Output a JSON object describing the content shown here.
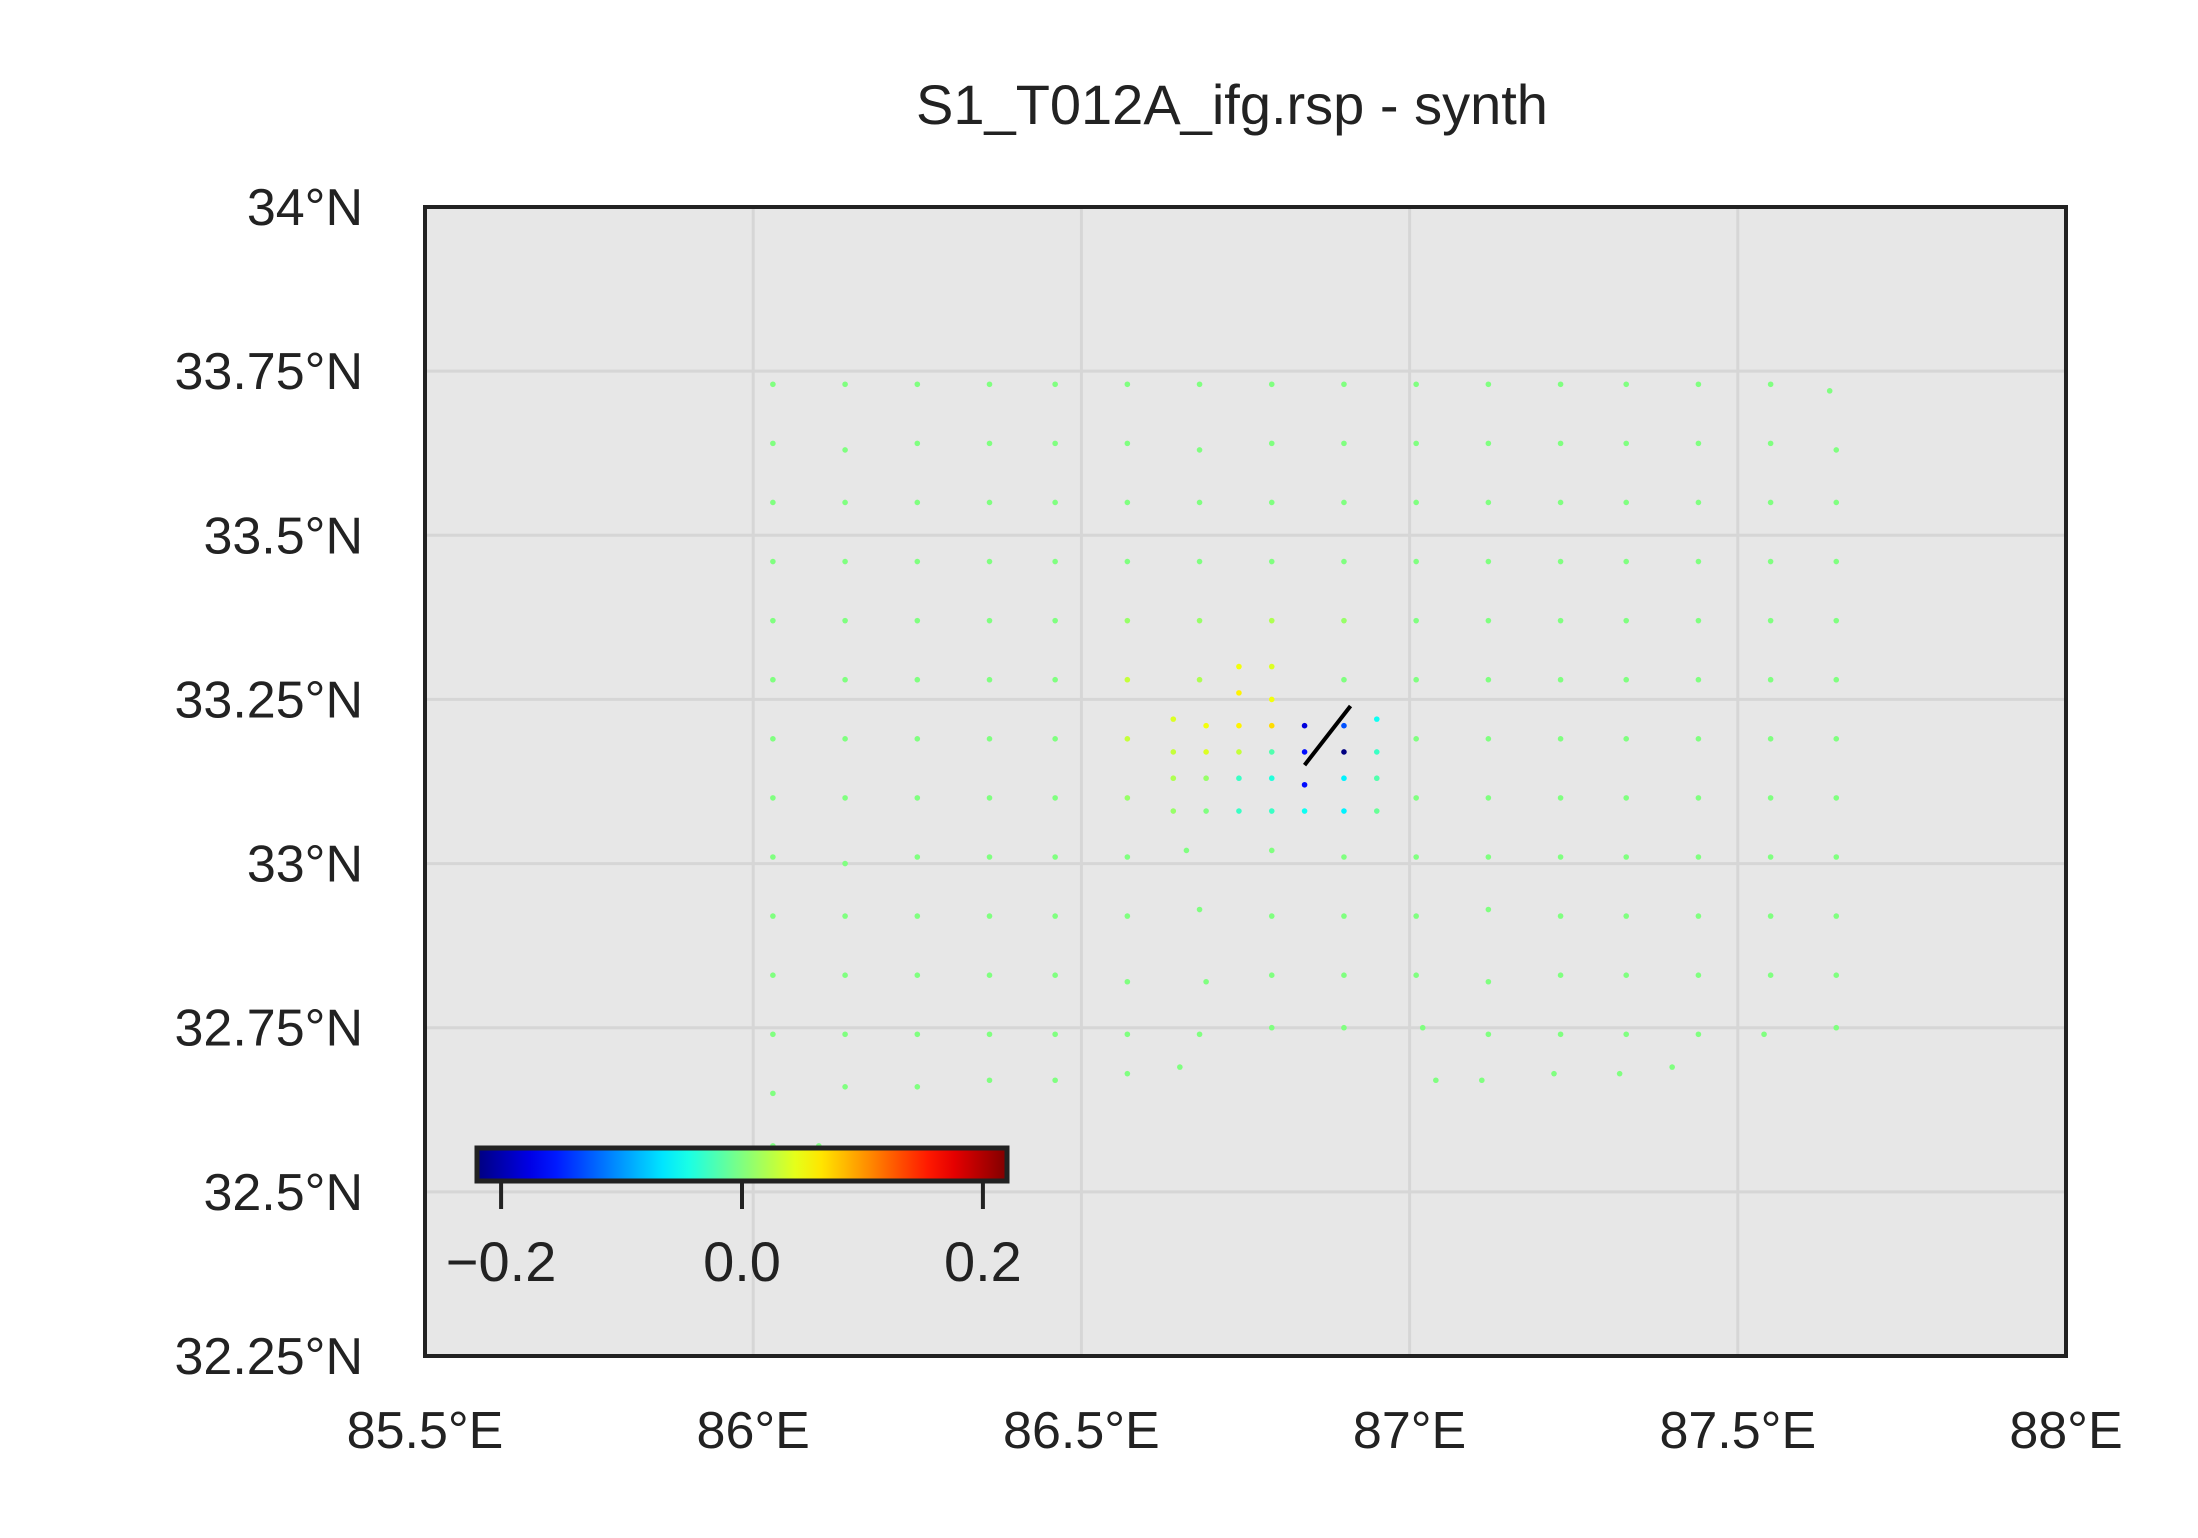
{
  "chart_data": {
    "type": "scatter",
    "title": "S1_T012A_ifg.rsp - synth",
    "xlabel": "",
    "ylabel": "",
    "xlim": [
      85.5,
      88.0
    ],
    "ylim": [
      32.25,
      34.0
    ],
    "x_ticks": [
      85.5,
      86.0,
      86.5,
      87.0,
      87.5,
      88.0
    ],
    "x_tick_labels": [
      "85.5°E",
      "86°E",
      "86.5°E",
      "87°E",
      "87.5°E",
      "88°E"
    ],
    "y_ticks": [
      34.0,
      33.75,
      33.5,
      33.25,
      33.0,
      32.75,
      32.5,
      32.25
    ],
    "y_tick_labels": [
      "34°N",
      "33.75°N",
      "33.5°N",
      "33.25°N",
      "33°N",
      "32.75°N",
      "32.5°N",
      "32.25°N"
    ],
    "grid": true,
    "background_color": "#e7e7e7",
    "grid_color": "#d6d6d6",
    "colormap": "jet",
    "colorbar": {
      "range": [
        -0.22,
        0.22
      ],
      "ticks": [
        -0.2,
        0.0,
        0.2
      ],
      "tick_labels": [
        "−0.2",
        "0.0",
        "0.2"
      ],
      "placement": "lower-left"
    },
    "fault_trace": {
      "color": "#000000",
      "points": [
        [
          86.84,
          33.15
        ],
        [
          86.91,
          33.24
        ]
      ]
    },
    "points": [
      [
        86.03,
        33.73,
        0.0
      ],
      [
        86.14,
        33.73,
        0.0
      ],
      [
        86.25,
        33.73,
        0.0
      ],
      [
        86.36,
        33.73,
        0.0
      ],
      [
        86.46,
        33.73,
        0.0
      ],
      [
        86.57,
        33.73,
        0.0
      ],
      [
        86.68,
        33.73,
        0.0
      ],
      [
        86.79,
        33.73,
        0.0
      ],
      [
        86.9,
        33.73,
        0.0
      ],
      [
        87.01,
        33.73,
        0.0
      ],
      [
        87.12,
        33.73,
        0.0
      ],
      [
        87.23,
        33.73,
        0.0
      ],
      [
        87.33,
        33.73,
        0.0
      ],
      [
        87.44,
        33.73,
        0.0
      ],
      [
        87.55,
        33.73,
        0.0
      ],
      [
        87.64,
        33.72,
        0.0
      ],
      [
        86.03,
        33.64,
        0.0
      ],
      [
        86.14,
        33.63,
        0.0
      ],
      [
        86.25,
        33.64,
        0.0
      ],
      [
        86.36,
        33.64,
        0.0
      ],
      [
        86.46,
        33.64,
        0.0
      ],
      [
        86.57,
        33.64,
        0.0
      ],
      [
        86.68,
        33.63,
        0.0
      ],
      [
        86.79,
        33.64,
        0.0
      ],
      [
        86.9,
        33.64,
        0.0
      ],
      [
        87.01,
        33.64,
        0.0
      ],
      [
        87.12,
        33.64,
        0.0
      ],
      [
        87.23,
        33.64,
        0.0
      ],
      [
        87.33,
        33.64,
        0.0
      ],
      [
        87.44,
        33.64,
        0.0
      ],
      [
        87.55,
        33.64,
        0.0
      ],
      [
        87.65,
        33.63,
        0.0
      ],
      [
        86.03,
        33.55,
        0.0
      ],
      [
        86.14,
        33.55,
        0.0
      ],
      [
        86.25,
        33.55,
        0.0
      ],
      [
        86.36,
        33.55,
        0.0
      ],
      [
        86.46,
        33.55,
        0.0
      ],
      [
        86.57,
        33.55,
        0.0
      ],
      [
        86.68,
        33.55,
        0.0
      ],
      [
        86.79,
        33.55,
        0.0
      ],
      [
        86.9,
        33.55,
        0.0
      ],
      [
        87.01,
        33.55,
        0.0
      ],
      [
        87.12,
        33.55,
        0.0
      ],
      [
        87.23,
        33.55,
        0.0
      ],
      [
        87.33,
        33.55,
        0.0
      ],
      [
        87.44,
        33.55,
        0.0
      ],
      [
        87.55,
        33.55,
        0.0
      ],
      [
        87.65,
        33.55,
        0.0
      ],
      [
        86.03,
        33.46,
        0.0
      ],
      [
        86.14,
        33.46,
        0.0
      ],
      [
        86.25,
        33.46,
        0.0
      ],
      [
        86.36,
        33.46,
        0.0
      ],
      [
        86.46,
        33.46,
        0.0
      ],
      [
        86.57,
        33.46,
        0.0
      ],
      [
        86.68,
        33.46,
        0.0
      ],
      [
        86.79,
        33.46,
        0.0
      ],
      [
        86.9,
        33.46,
        0.0
      ],
      [
        87.01,
        33.46,
        0.0
      ],
      [
        87.12,
        33.46,
        0.0
      ],
      [
        87.23,
        33.46,
        0.0
      ],
      [
        87.33,
        33.46,
        0.0
      ],
      [
        87.44,
        33.46,
        0.0
      ],
      [
        87.55,
        33.46,
        0.0
      ],
      [
        87.65,
        33.46,
        0.0
      ],
      [
        86.03,
        33.37,
        0.0
      ],
      [
        86.14,
        33.37,
        0.0
      ],
      [
        86.25,
        33.37,
        0.0
      ],
      [
        86.36,
        33.37,
        0.0
      ],
      [
        86.46,
        33.37,
        0.0
      ],
      [
        86.57,
        33.37,
        0.01
      ],
      [
        86.68,
        33.37,
        0.01
      ],
      [
        86.79,
        33.37,
        0.02
      ],
      [
        86.9,
        33.37,
        0.01
      ],
      [
        87.01,
        33.37,
        0.0
      ],
      [
        87.12,
        33.37,
        0.0
      ],
      [
        87.23,
        33.37,
        0.0
      ],
      [
        87.33,
        33.37,
        0.0
      ],
      [
        87.44,
        33.37,
        0.0
      ],
      [
        87.55,
        33.37,
        0.0
      ],
      [
        87.65,
        33.37,
        0.0
      ],
      [
        86.03,
        33.28,
        0.0
      ],
      [
        86.14,
        33.28,
        0.0
      ],
      [
        86.25,
        33.28,
        0.0
      ],
      [
        86.36,
        33.28,
        0.0
      ],
      [
        86.46,
        33.28,
        0.0
      ],
      [
        86.57,
        33.28,
        0.03
      ],
      [
        86.68,
        33.28,
        0.02
      ],
      [
        86.9,
        33.28,
        0.0
      ],
      [
        87.01,
        33.28,
        0.0
      ],
      [
        87.12,
        33.28,
        0.0
      ],
      [
        87.23,
        33.28,
        0.0
      ],
      [
        87.33,
        33.28,
        0.0
      ],
      [
        87.44,
        33.28,
        0.0
      ],
      [
        87.55,
        33.28,
        0.0
      ],
      [
        87.65,
        33.28,
        0.0
      ],
      [
        86.03,
        33.19,
        0.0
      ],
      [
        86.14,
        33.19,
        0.0
      ],
      [
        86.25,
        33.19,
        0.0
      ],
      [
        86.36,
        33.19,
        0.0
      ],
      [
        86.46,
        33.19,
        0.0
      ],
      [
        86.57,
        33.19,
        0.03
      ],
      [
        87.01,
        33.19,
        0.0
      ],
      [
        87.12,
        33.19,
        0.0
      ],
      [
        87.23,
        33.19,
        0.0
      ],
      [
        87.33,
        33.19,
        0.0
      ],
      [
        87.44,
        33.19,
        0.0
      ],
      [
        87.55,
        33.19,
        0.0
      ],
      [
        87.65,
        33.19,
        0.0
      ],
      [
        86.03,
        33.1,
        0.0
      ],
      [
        86.14,
        33.1,
        0.0
      ],
      [
        86.25,
        33.1,
        0.0
      ],
      [
        86.36,
        33.1,
        0.0
      ],
      [
        86.46,
        33.1,
        0.0
      ],
      [
        86.57,
        33.1,
        0.01
      ],
      [
        87.01,
        33.1,
        0.0
      ],
      [
        87.12,
        33.1,
        0.0
      ],
      [
        87.23,
        33.1,
        0.0
      ],
      [
        87.33,
        33.1,
        0.0
      ],
      [
        87.44,
        33.1,
        0.0
      ],
      [
        87.55,
        33.1,
        0.0
      ],
      [
        87.65,
        33.1,
        0.0
      ],
      [
        86.03,
        33.01,
        0.0
      ],
      [
        86.14,
        33.0,
        0.0
      ],
      [
        86.25,
        33.01,
        0.0
      ],
      [
        86.36,
        33.01,
        0.0
      ],
      [
        86.46,
        33.01,
        0.0
      ],
      [
        86.57,
        33.01,
        0.0
      ],
      [
        86.66,
        33.02,
        0.0
      ],
      [
        86.79,
        33.02,
        0.0
      ],
      [
        86.9,
        33.01,
        0.0
      ],
      [
        87.01,
        33.01,
        0.0
      ],
      [
        87.12,
        33.01,
        0.0
      ],
      [
        87.23,
        33.01,
        0.0
      ],
      [
        87.33,
        33.01,
        0.0
      ],
      [
        87.44,
        33.01,
        0.0
      ],
      [
        87.55,
        33.01,
        0.0
      ],
      [
        87.65,
        33.01,
        0.0
      ],
      [
        86.03,
        32.92,
        0.0
      ],
      [
        86.14,
        32.92,
        0.0
      ],
      [
        86.25,
        32.92,
        0.0
      ],
      [
        86.36,
        32.92,
        0.0
      ],
      [
        86.46,
        32.92,
        0.0
      ],
      [
        86.57,
        32.92,
        0.0
      ],
      [
        86.68,
        32.93,
        0.0
      ],
      [
        86.79,
        32.92,
        0.0
      ],
      [
        86.9,
        32.92,
        0.0
      ],
      [
        87.01,
        32.92,
        0.0
      ],
      [
        87.12,
        32.93,
        0.0
      ],
      [
        87.23,
        32.92,
        0.0
      ],
      [
        87.33,
        32.92,
        0.0
      ],
      [
        87.44,
        32.92,
        0.0
      ],
      [
        87.55,
        32.92,
        0.0
      ],
      [
        87.65,
        32.92,
        0.0
      ],
      [
        86.03,
        32.83,
        0.0
      ],
      [
        86.14,
        32.83,
        0.0
      ],
      [
        86.25,
        32.83,
        0.0
      ],
      [
        86.36,
        32.83,
        0.0
      ],
      [
        86.46,
        32.83,
        0.0
      ],
      [
        86.57,
        32.82,
        0.0
      ],
      [
        86.69,
        32.82,
        0.0
      ],
      [
        86.79,
        32.83,
        0.0
      ],
      [
        86.9,
        32.83,
        0.0
      ],
      [
        87.01,
        32.83,
        0.0
      ],
      [
        87.12,
        32.82,
        0.0
      ],
      [
        87.23,
        32.83,
        0.0
      ],
      [
        87.33,
        32.83,
        0.0
      ],
      [
        87.44,
        32.83,
        0.0
      ],
      [
        87.55,
        32.83,
        0.0
      ],
      [
        87.65,
        32.83,
        0.0
      ],
      [
        86.03,
        32.74,
        0.0
      ],
      [
        86.14,
        32.74,
        0.0
      ],
      [
        86.25,
        32.74,
        0.0
      ],
      [
        86.36,
        32.74,
        0.0
      ],
      [
        86.46,
        32.74,
        0.0
      ],
      [
        86.57,
        32.74,
        0.0
      ],
      [
        86.68,
        32.74,
        0.0
      ],
      [
        86.79,
        32.75,
        0.0
      ],
      [
        86.9,
        32.75,
        0.0
      ],
      [
        87.02,
        32.75,
        0.0
      ],
      [
        87.12,
        32.74,
        0.0
      ],
      [
        87.23,
        32.74,
        0.0
      ],
      [
        87.33,
        32.74,
        0.0
      ],
      [
        87.44,
        32.74,
        0.0
      ],
      [
        87.54,
        32.74,
        0.0
      ],
      [
        87.65,
        32.75,
        0.0
      ],
      [
        86.03,
        32.65,
        0.0
      ],
      [
        86.14,
        32.66,
        0.0
      ],
      [
        86.25,
        32.66,
        0.0
      ],
      [
        86.36,
        32.67,
        0.0
      ],
      [
        86.46,
        32.67,
        0.0
      ],
      [
        86.57,
        32.68,
        0.0
      ],
      [
        86.65,
        32.69,
        0.0
      ],
      [
        87.04,
        32.67,
        0.0
      ],
      [
        87.11,
        32.67,
        0.0
      ],
      [
        87.22,
        32.68,
        0.0
      ],
      [
        87.32,
        32.68,
        0.0
      ],
      [
        87.4,
        32.69,
        0.0
      ],
      [
        86.03,
        32.57,
        0.0
      ],
      [
        86.1,
        32.57,
        0.0
      ],
      [
        86.74,
        33.3,
        0.05
      ],
      [
        86.79,
        33.3,
        0.04
      ],
      [
        86.74,
        33.26,
        0.06
      ],
      [
        86.79,
        33.25,
        0.05
      ],
      [
        86.64,
        33.22,
        0.04
      ],
      [
        86.69,
        33.21,
        0.05
      ],
      [
        86.74,
        33.21,
        0.06
      ],
      [
        86.79,
        33.21,
        0.07
      ],
      [
        86.84,
        33.21,
        -0.18
      ],
      [
        86.9,
        33.21,
        -0.13
      ],
      [
        86.64,
        33.17,
        0.03
      ],
      [
        86.69,
        33.17,
        0.04
      ],
      [
        86.74,
        33.17,
        0.03
      ],
      [
        86.84,
        33.17,
        -0.16
      ],
      [
        86.9,
        33.17,
        -0.22
      ],
      [
        86.64,
        33.13,
        0.02
      ],
      [
        86.69,
        33.13,
        0.01
      ],
      [
        86.74,
        33.13,
        -0.03
      ],
      [
        86.84,
        33.12,
        -0.16
      ],
      [
        86.9,
        33.13,
        -0.06
      ],
      [
        86.64,
        33.08,
        0.01
      ],
      [
        86.69,
        33.08,
        0.0
      ],
      [
        86.74,
        33.08,
        -0.03
      ],
      [
        86.79,
        33.08,
        -0.03
      ],
      [
        86.84,
        33.08,
        -0.05
      ],
      [
        86.9,
        33.08,
        -0.06
      ],
      [
        86.95,
        33.22,
        -0.05
      ],
      [
        86.95,
        33.17,
        -0.03
      ],
      [
        86.95,
        33.13,
        -0.02
      ],
      [
        86.95,
        33.08,
        -0.01
      ],
      [
        86.79,
        33.13,
        -0.04
      ],
      [
        86.79,
        33.17,
        -0.02
      ]
    ]
  }
}
